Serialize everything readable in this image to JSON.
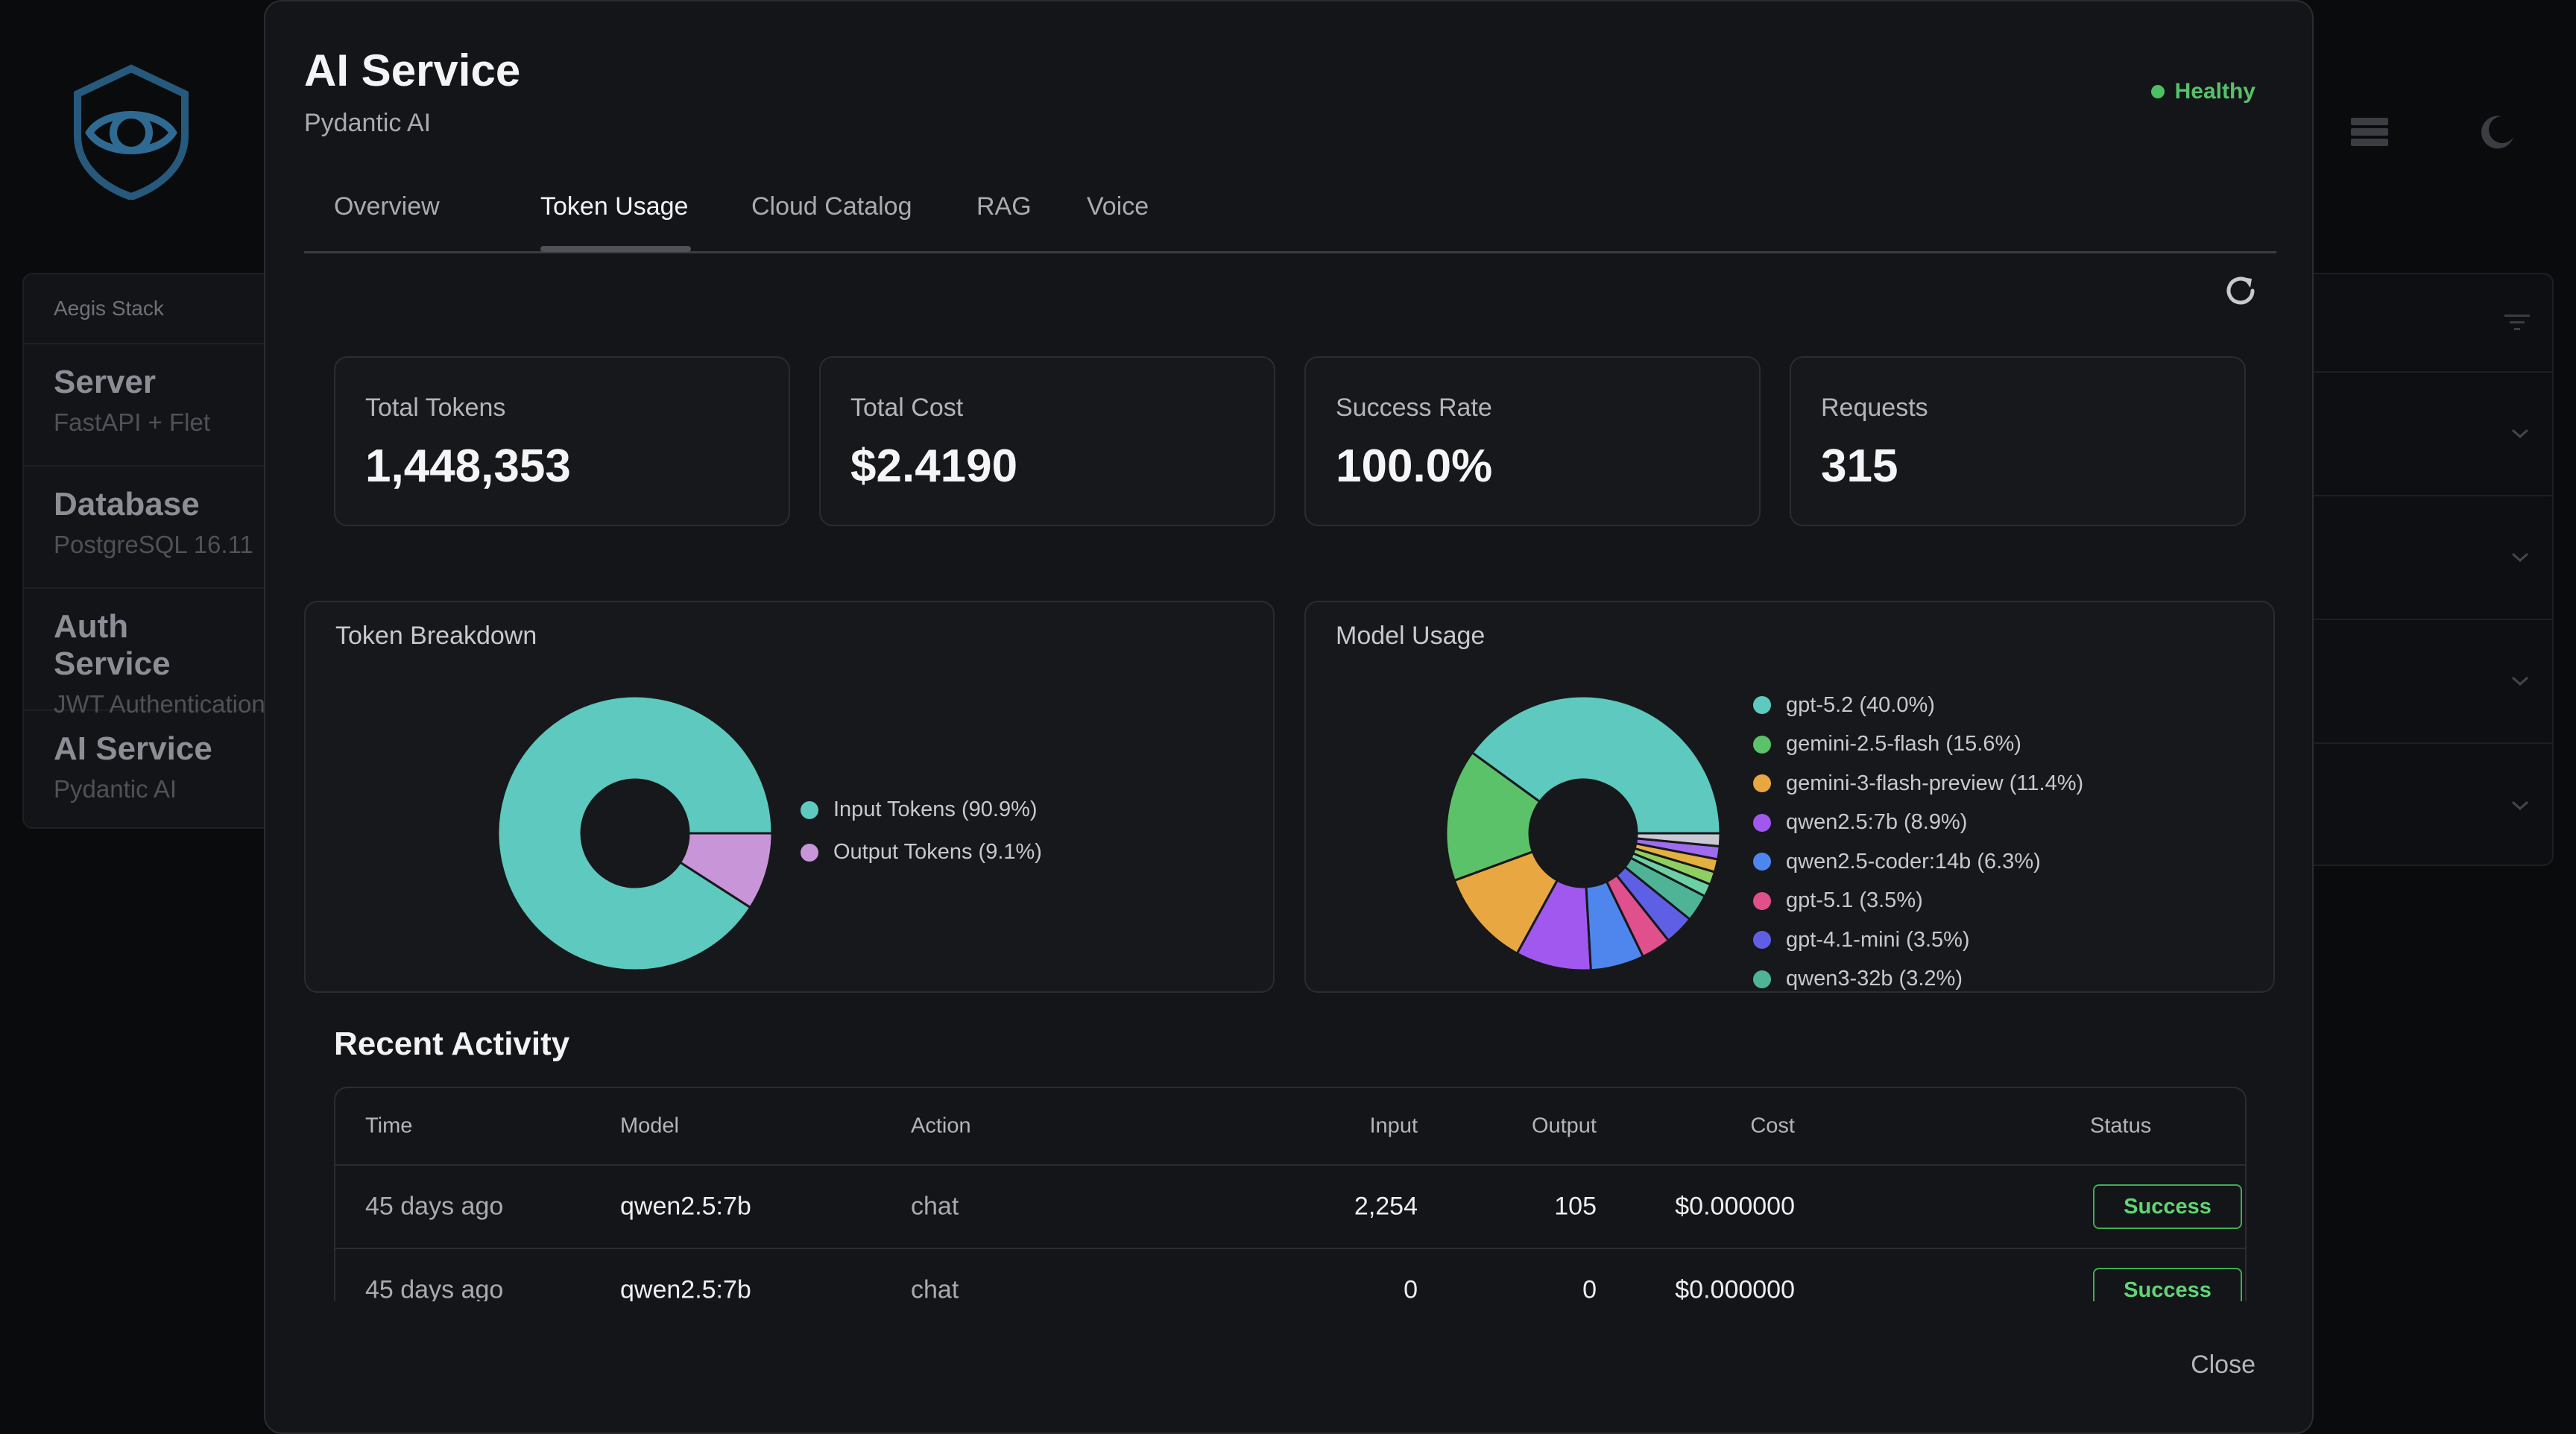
{
  "background": {
    "stack_title": "Aegis Stack",
    "stack_items": [
      {
        "name": "Server",
        "sub": "FastAPI + Flet"
      },
      {
        "name": "Database",
        "sub": "PostgreSQL 16.11"
      },
      {
        "name": "Auth Service",
        "sub": "JWT Authentication"
      },
      {
        "name": "AI Service",
        "sub": "Pydantic AI"
      }
    ]
  },
  "modal": {
    "title": "AI Service",
    "subtitle": "Pydantic AI",
    "health": "Healthy",
    "tabs": [
      "Overview",
      "Token Usage",
      "Cloud Catalog",
      "RAG",
      "Voice"
    ],
    "active_tab": "Token Usage",
    "stats": [
      {
        "label": "Total Tokens",
        "value": "1,448,353"
      },
      {
        "label": "Total Cost",
        "value": "$2.4190"
      },
      {
        "label": "Success Rate",
        "value": "100.0%"
      },
      {
        "label": "Requests",
        "value": "315"
      }
    ],
    "token_breakdown": {
      "title": "Token Breakdown",
      "legend": [
        "Input Tokens (90.9%)",
        "Output Tokens (9.1%)"
      ]
    },
    "model_usage": {
      "title": "Model Usage",
      "legend": [
        "gpt-5.2 (40.0%)",
        "gemini-2.5-flash (15.6%)",
        "gemini-3-flash-preview (11.4%)",
        "qwen2.5:7b (8.9%)",
        "qwen2.5-coder:14b (6.3%)",
        "gpt-5.1 (3.5%)",
        "gpt-4.1-mini (3.5%)",
        "qwen3-32b (3.2%)"
      ]
    },
    "recent_activity": {
      "title": "Recent Activity",
      "columns": [
        "Time",
        "Model",
        "Action",
        "Input",
        "Output",
        "Cost",
        "Status"
      ],
      "rows": [
        {
          "time": "45 days ago",
          "model": "qwen2.5:7b",
          "action": "chat",
          "input": "2,254",
          "output": "105",
          "cost": "$0.000000",
          "status": "Success"
        },
        {
          "time": "45 days ago",
          "model": "qwen2.5:7b",
          "action": "chat",
          "input": "0",
          "output": "0",
          "cost": "$0.000000",
          "status": "Success"
        }
      ]
    },
    "close_label": "Close"
  },
  "chart_data": [
    {
      "type": "pie",
      "title": "Token Breakdown",
      "categories": [
        "Input Tokens",
        "Output Tokens"
      ],
      "values": [
        90.9,
        9.1
      ],
      "colors": [
        "#5ec9be",
        "#c895d8"
      ]
    },
    {
      "type": "pie",
      "title": "Model Usage",
      "categories": [
        "gpt-5.2",
        "gemini-2.5-flash",
        "gemini-3-flash-preview",
        "qwen2.5:7b",
        "qwen2.5-coder:14b",
        "gpt-5.1",
        "gpt-4.1-mini",
        "qwen3-32b"
      ],
      "values": [
        40.0,
        15.6,
        11.4,
        8.9,
        6.3,
        3.5,
        3.5,
        3.2
      ],
      "colors": [
        "#5ec9be",
        "#5cc26a",
        "#e9a742",
        "#a058ee",
        "#4f86ee",
        "#e0508c",
        "#5f5fe6",
        "#4fb496"
      ]
    }
  ],
  "colors": {
    "healthy": "#4cc064",
    "success_border": "#3fae55",
    "extra_model_slices": [
      "#6cd0a4",
      "#8fcf62",
      "#e4b040",
      "#9f6cf0",
      "#c9c9d4"
    ]
  }
}
